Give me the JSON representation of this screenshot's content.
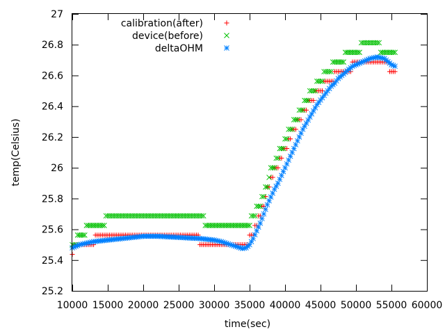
{
  "chart_data": {
    "type": "scatter",
    "title": "",
    "xlabel": "time(sec)",
    "ylabel": "temp(Celsius)",
    "xlim": [
      10000,
      60000
    ],
    "ylim": [
      25.2,
      27
    ],
    "x_ticks": [
      "10000",
      "15000",
      "20000",
      "25000",
      "30000",
      "35000",
      "40000",
      "45000",
      "50000",
      "55000",
      "60000"
    ],
    "y_ticks": [
      "25.2",
      "25.4",
      "25.6",
      "25.8",
      "26",
      "26.2",
      "26.4",
      "26.6",
      "26.8",
      "27"
    ],
    "grid": false,
    "legend_position": "top-center",
    "sample_step_sec": 250,
    "series": [
      {
        "name": "calibration(after)",
        "marker": "plus",
        "color": "#ff0000",
        "resolution": 0.0625,
        "points": [
          [
            10000,
            25.46
          ],
          [
            11000,
            25.5
          ],
          [
            12000,
            25.52
          ],
          [
            14000,
            25.54
          ],
          [
            16000,
            25.55
          ],
          [
            18000,
            25.55
          ],
          [
            20000,
            25.56
          ],
          [
            22000,
            25.55
          ],
          [
            24000,
            25.55
          ],
          [
            26000,
            25.54
          ],
          [
            28000,
            25.53
          ],
          [
            30000,
            25.52
          ],
          [
            32000,
            25.5
          ],
          [
            33500,
            25.48
          ],
          [
            34500,
            25.5
          ],
          [
            35500,
            25.58
          ],
          [
            36500,
            25.7
          ],
          [
            37500,
            25.85
          ],
          [
            38500,
            25.98
          ],
          [
            39500,
            26.08
          ],
          [
            40500,
            26.18
          ],
          [
            41500,
            26.27
          ],
          [
            42500,
            26.36
          ],
          [
            43500,
            26.43
          ],
          [
            44500,
            26.49
          ],
          [
            45500,
            26.54
          ],
          [
            46500,
            26.58
          ],
          [
            47500,
            26.62
          ],
          [
            48500,
            26.64
          ],
          [
            49500,
            26.66
          ],
          [
            50500,
            26.68
          ],
          [
            51500,
            26.69
          ],
          [
            52500,
            26.7
          ],
          [
            53500,
            26.69
          ],
          [
            54500,
            26.66
          ],
          [
            55500,
            26.63
          ]
        ]
      },
      {
        "name": "device(before)",
        "marker": "cross",
        "color": "#00c000",
        "resolution": 0.0625,
        "points": [
          [
            10000,
            25.5
          ],
          [
            11000,
            25.55
          ],
          [
            12000,
            25.6
          ],
          [
            13000,
            25.64
          ],
          [
            15000,
            25.66
          ],
          [
            20000,
            25.66
          ],
          [
            25000,
            25.66
          ],
          [
            28500,
            25.66
          ],
          [
            30000,
            25.63
          ],
          [
            32000,
            25.62
          ],
          [
            34000,
            25.62
          ],
          [
            35000,
            25.64
          ],
          [
            36000,
            25.72
          ],
          [
            37000,
            25.84
          ],
          [
            38000,
            25.97
          ],
          [
            39000,
            26.08
          ],
          [
            40000,
            26.18
          ],
          [
            41000,
            26.27
          ],
          [
            42000,
            26.36
          ],
          [
            43000,
            26.44
          ],
          [
            44000,
            26.51
          ],
          [
            45000,
            26.57
          ],
          [
            46000,
            26.62
          ],
          [
            47000,
            26.67
          ],
          [
            48000,
            26.71
          ],
          [
            49000,
            26.74
          ],
          [
            50000,
            26.77
          ],
          [
            51000,
            26.79
          ],
          [
            52000,
            26.8
          ],
          [
            53000,
            26.79
          ],
          [
            54000,
            26.77
          ],
          [
            55500,
            26.75
          ]
        ]
      },
      {
        "name": "deltaOHM",
        "marker": "star",
        "color": "#0080ff",
        "resolution": 0,
        "points": [
          [
            10000,
            25.48
          ],
          [
            11000,
            25.5
          ],
          [
            12000,
            25.51
          ],
          [
            13000,
            25.52
          ],
          [
            14000,
            25.525
          ],
          [
            15000,
            25.53
          ],
          [
            16000,
            25.535
          ],
          [
            17000,
            25.54
          ],
          [
            18000,
            25.545
          ],
          [
            19000,
            25.55
          ],
          [
            20000,
            25.555
          ],
          [
            22000,
            25.555
          ],
          [
            24000,
            25.55
          ],
          [
            26000,
            25.545
          ],
          [
            28000,
            25.54
          ],
          [
            29000,
            25.535
          ],
          [
            30000,
            25.53
          ],
          [
            31000,
            25.52
          ],
          [
            32000,
            25.505
          ],
          [
            33000,
            25.49
          ],
          [
            34000,
            25.475
          ],
          [
            34500,
            25.48
          ],
          [
            35000,
            25.5
          ],
          [
            35500,
            25.54
          ],
          [
            36000,
            25.59
          ],
          [
            36500,
            25.64
          ],
          [
            37000,
            25.7
          ],
          [
            37500,
            25.76
          ],
          [
            38000,
            25.81
          ],
          [
            38500,
            25.86
          ],
          [
            39000,
            25.9
          ],
          [
            39500,
            25.95
          ],
          [
            40000,
            26.0
          ],
          [
            40500,
            26.05
          ],
          [
            41000,
            26.1
          ],
          [
            41500,
            26.15
          ],
          [
            42000,
            26.2
          ],
          [
            42500,
            26.25
          ],
          [
            43000,
            26.29
          ],
          [
            43500,
            26.33
          ],
          [
            44000,
            26.37
          ],
          [
            44500,
            26.41
          ],
          [
            45000,
            26.44
          ],
          [
            45500,
            26.47
          ],
          [
            46000,
            26.5
          ],
          [
            46500,
            26.53
          ],
          [
            47000,
            26.55
          ],
          [
            47500,
            26.58
          ],
          [
            48000,
            26.6
          ],
          [
            48500,
            26.62
          ],
          [
            49000,
            26.64
          ],
          [
            49500,
            26.66
          ],
          [
            50000,
            26.67
          ],
          [
            51000,
            26.69
          ],
          [
            52000,
            26.71
          ],
          [
            53000,
            26.72
          ],
          [
            54000,
            26.71
          ],
          [
            54500,
            26.69
          ],
          [
            55000,
            26.67
          ],
          [
            55500,
            26.66
          ]
        ]
      }
    ]
  }
}
